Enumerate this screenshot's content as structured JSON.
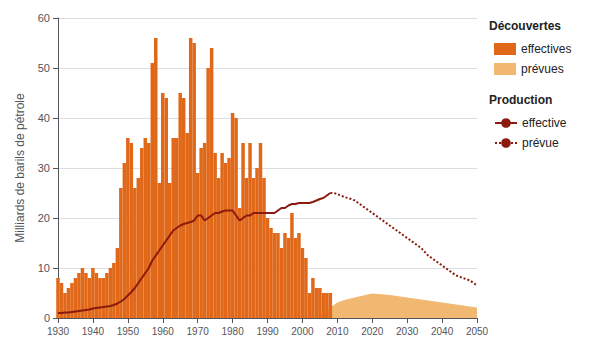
{
  "chart_data": {
    "type": "bar",
    "ylabel": "Milliards de barils de pétrole",
    "xlim": [
      1930,
      2050
    ],
    "ylim": [
      0,
      60
    ],
    "xticks": [
      1930,
      1940,
      1950,
      1960,
      1970,
      1980,
      1990,
      2000,
      2010,
      2020,
      2030,
      2040,
      2050
    ],
    "yticks": [
      0,
      10,
      20,
      30,
      40,
      50,
      60
    ],
    "grid": true,
    "legend": "upper right",
    "annotations": [
      "Découvertes",
      "Production"
    ],
    "series": [
      {
        "name": "effectives",
        "type": "bar",
        "color": "#e06818",
        "x": [
          1930,
          1931,
          1932,
          1933,
          1934,
          1935,
          1936,
          1937,
          1938,
          1939,
          1940,
          1941,
          1942,
          1943,
          1944,
          1945,
          1946,
          1947,
          1948,
          1949,
          1950,
          1951,
          1952,
          1953,
          1954,
          1955,
          1956,
          1957,
          1958,
          1959,
          1960,
          1961,
          1962,
          1963,
          1964,
          1965,
          1966,
          1967,
          1968,
          1969,
          1970,
          1971,
          1972,
          1973,
          1974,
          1975,
          1976,
          1977,
          1978,
          1979,
          1980,
          1981,
          1982,
          1983,
          1984,
          1985,
          1986,
          1987,
          1988,
          1989,
          1990,
          1991,
          1992,
          1993,
          1994,
          1995,
          1996,
          1997,
          1998,
          1999,
          2000,
          2001,
          2002,
          2003,
          2004,
          2005,
          2006,
          2007,
          2008
        ],
        "values": [
          8,
          7,
          5,
          6,
          7,
          8,
          9,
          10,
          9,
          8,
          10,
          9,
          8,
          8,
          9,
          10,
          11,
          14,
          26,
          31,
          36,
          35,
          26,
          28,
          34,
          36,
          35,
          51,
          56,
          27,
          45,
          44,
          27,
          36,
          36,
          45,
          44,
          37,
          56,
          55,
          29,
          34,
          35,
          50,
          54,
          33,
          28,
          33,
          31,
          32,
          41,
          40,
          22,
          35,
          28,
          35,
          28,
          30,
          35,
          28,
          20,
          18,
          17,
          17,
          14,
          17,
          16,
          21,
          16,
          17,
          14,
          12,
          5,
          8,
          6,
          6,
          5,
          5,
          5
        ]
      },
      {
        "name": "prévues",
        "type": "area",
        "color": "#f0b870",
        "x": [
          2005,
          2006,
          2007,
          2008,
          2009,
          2010,
          2012,
          2015,
          2018,
          2020,
          2025,
          2030,
          2035,
          2040,
          2045,
          2050
        ],
        "values": [
          0.5,
          1.0,
          1.5,
          2.0,
          2.5,
          3.0,
          3.5,
          4.0,
          4.5,
          4.8,
          4.5,
          4.0,
          3.5,
          3.0,
          2.5,
          2.0
        ]
      },
      {
        "name": "effective",
        "type": "line",
        "color": "#8B1A10",
        "line_style": "solid",
        "x": [
          1930,
          1931,
          1932,
          1933,
          1934,
          1935,
          1936,
          1937,
          1938,
          1939,
          1940,
          1941,
          1942,
          1943,
          1944,
          1945,
          1946,
          1947,
          1948,
          1949,
          1950,
          1951,
          1952,
          1953,
          1954,
          1955,
          1956,
          1957,
          1958,
          1959,
          1960,
          1961,
          1962,
          1963,
          1964,
          1965,
          1966,
          1967,
          1968,
          1969,
          1970,
          1971,
          1972,
          1973,
          1974,
          1975,
          1976,
          1977,
          1978,
          1979,
          1980,
          1981,
          1982,
          1983,
          1984,
          1985,
          1986,
          1987,
          1988,
          1989,
          1990,
          1991,
          1992,
          1993,
          1994,
          1995,
          1996,
          1997,
          1998,
          1999,
          2000,
          2001,
          2002,
          2003,
          2004,
          2005,
          2006,
          2007,
          2008
        ],
        "values": [
          1.0,
          1.0,
          1.1,
          1.1,
          1.2,
          1.3,
          1.4,
          1.5,
          1.6,
          1.7,
          1.9,
          2.0,
          2.1,
          2.2,
          2.3,
          2.4,
          2.6,
          2.9,
          3.3,
          3.8,
          4.5,
          5.2,
          6.0,
          7.0,
          8.0,
          9.0,
          10.0,
          11.5,
          12.5,
          13.5,
          14.5,
          15.5,
          16.5,
          17.5,
          18.0,
          18.5,
          18.8,
          19.0,
          19.2,
          19.5,
          20.5,
          20.5,
          19.5,
          20.0,
          20.5,
          21.0,
          21.0,
          21.3,
          21.5,
          21.5,
          21.5,
          20.5,
          19.5,
          20.0,
          20.5,
          20.5,
          21.0,
          21.0,
          21.0,
          21.0,
          21.0,
          21.0,
          21.0,
          21.5,
          22.0,
          22.0,
          22.5,
          22.8,
          22.8,
          23.0,
          23.0,
          23.0,
          23.0,
          23.2,
          23.5,
          23.8,
          24.0,
          24.5,
          25.0
        ]
      },
      {
        "name": "prévue",
        "type": "line",
        "color": "#8B1A10",
        "line_style": "dotted",
        "x": [
          2008,
          2009,
          2010,
          2011,
          2012,
          2013,
          2014,
          2015,
          2016,
          2017,
          2018,
          2019,
          2020,
          2021,
          2022,
          2023,
          2024,
          2025,
          2026,
          2027,
          2028,
          2029,
          2030,
          2032,
          2034,
          2036,
          2038,
          2040,
          2042,
          2044,
          2046,
          2048,
          2050
        ],
        "values": [
          25.0,
          25.0,
          24.8,
          24.5,
          24.2,
          24.0,
          23.8,
          23.5,
          23.0,
          22.5,
          22.0,
          21.5,
          21.0,
          20.5,
          20.0,
          19.5,
          19.0,
          18.5,
          18.0,
          17.5,
          17.0,
          16.5,
          16.0,
          15.0,
          14.0,
          12.5,
          11.5,
          10.5,
          9.5,
          8.5,
          8.0,
          7.5,
          6.5
        ]
      }
    ]
  }
}
